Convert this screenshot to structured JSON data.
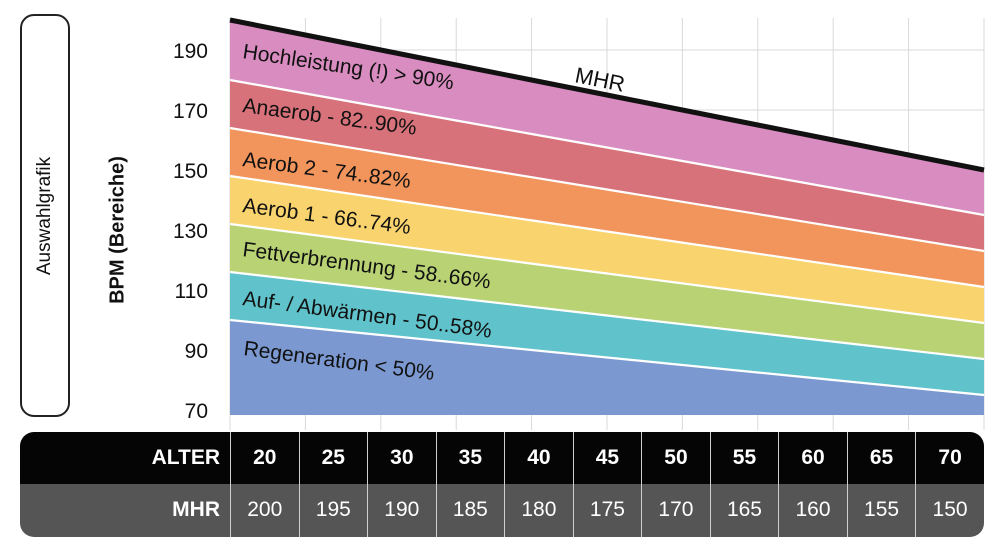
{
  "side_label": "Auswahlgrafik",
  "chart_data": {
    "type": "area",
    "ylabel": "BPM (Bereiche)",
    "ylim": [
      70,
      200
    ],
    "yticks": [
      190,
      170,
      150,
      130,
      110,
      90,
      70
    ],
    "x": [
      20,
      25,
      30,
      35,
      40,
      45,
      50,
      55,
      60,
      65,
      70
    ],
    "mhr_label": "MHR",
    "mhr": [
      200,
      195,
      190,
      185,
      180,
      175,
      170,
      165,
      160,
      155,
      150
    ],
    "grid": true,
    "zones": [
      {
        "name": "Regeneration  < 50%",
        "color": "#7b98d0",
        "upper_pct": 0.5
      },
      {
        "name": "Auf- / Abwärmen - 50..58%",
        "color": "#60c3cc",
        "upper_pct": 0.58
      },
      {
        "name": "Fettverbrennung - 58..66%",
        "color": "#b8d274",
        "upper_pct": 0.66
      },
      {
        "name": "Aerob 1 - 66..74%",
        "color": "#f9d46e",
        "upper_pct": 0.74
      },
      {
        "name": "Aerob 2 - 74..82%",
        "color": "#f2955c",
        "upper_pct": 0.82
      },
      {
        "name": "Anaerob - 82..90%",
        "color": "#d8727a",
        "upper_pct": 0.9
      },
      {
        "name": "Hochleistung (!) > 90%",
        "color": "#d98cc0",
        "upper_pct": 1.0
      }
    ]
  },
  "table": {
    "alter_label": "ALTER",
    "mhr_label": "MHR",
    "alter": [
      "20",
      "25",
      "30",
      "35",
      "40",
      "45",
      "50",
      "55",
      "60",
      "65",
      "70"
    ],
    "mhr": [
      "200",
      "195",
      "190",
      "185",
      "180",
      "175",
      "170",
      "165",
      "160",
      "155",
      "150"
    ]
  }
}
